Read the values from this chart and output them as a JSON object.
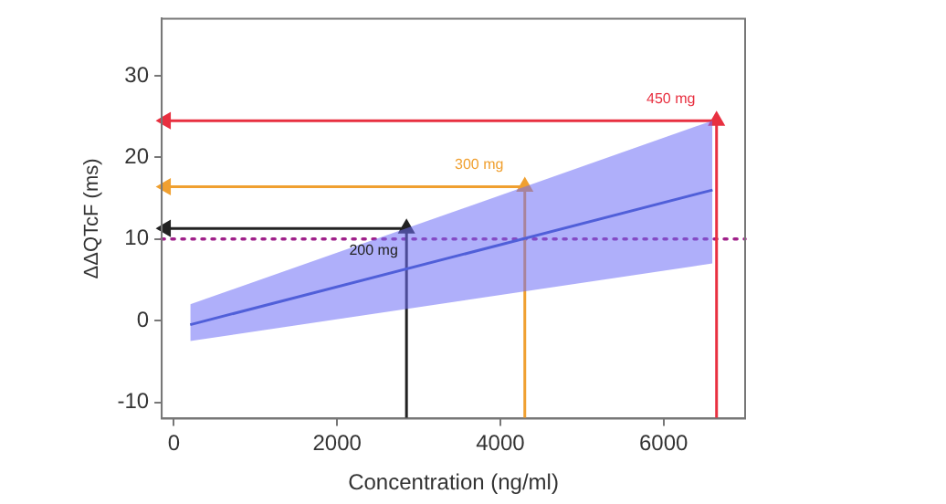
{
  "chart_data": {
    "type": "line",
    "xlabel": "Concentration (ng/ml)",
    "ylabel": "ΔΔQTcF (ms)",
    "xlim": [
      -150,
      7000
    ],
    "xticks": [
      0,
      2000,
      4000,
      6000
    ],
    "ylim": [
      -12,
      37
    ],
    "yticks": [
      -10,
      0,
      10,
      20,
      30
    ],
    "grid": false,
    "legend": false,
    "marker": "none",
    "series": [
      {
        "color": "#2e4fb5",
        "x": [
          200,
          6600
        ],
        "values": [
          -0.5,
          16
        ],
        "lower": [
          -2.5,
          7
        ],
        "upper": [
          2,
          24.5
        ]
      },
      {
        "color": "#222222",
        "x": [
          2850,
          2850,
          -100
        ],
        "values": [
          -12,
          11.3,
          11.3
        ],
        "marker": "triangle"
      },
      {
        "color": "#f0a030",
        "x": [
          4300,
          4300,
          -100
        ],
        "values": [
          -12,
          16.4,
          16.4
        ],
        "marker": "triangle"
      },
      {
        "color": "#e83040",
        "x": [
          6650,
          6650,
          -100
        ],
        "values": [
          -12,
          24.5,
          24.5
        ],
        "marker": "triangle"
      }
    ],
    "ref_lines": [
      {
        "axis": "y",
        "value": 10,
        "color": "#a0208a",
        "line_style": "dotted"
      }
    ],
    "annotations": [
      "200 mg",
      "300 mg",
      "450 mg"
    ]
  }
}
